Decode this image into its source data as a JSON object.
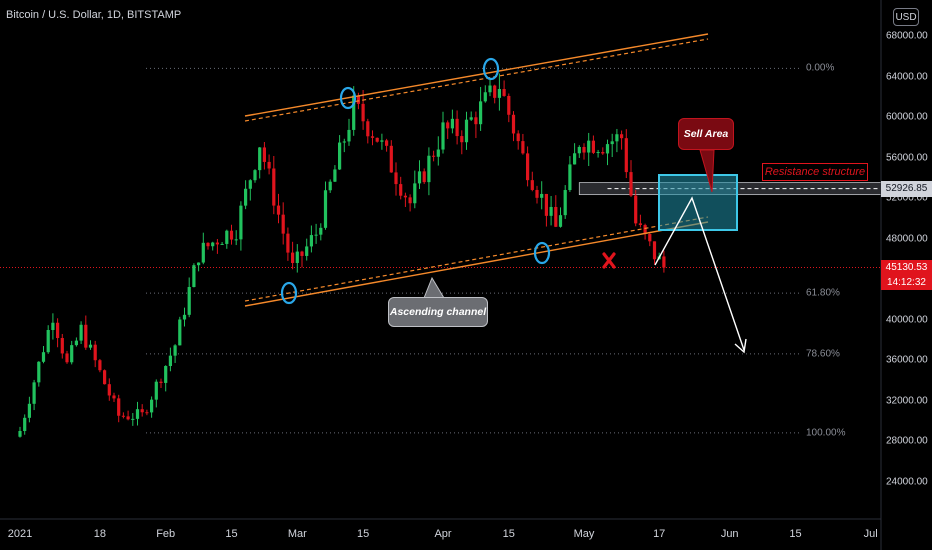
{
  "header": {
    "title": "Bitcoin / U.S. Dollar, 1D, BITSTAMP",
    "currency_button": "USD"
  },
  "y_axis_labels": [
    "68000.00",
    "64000.00",
    "60000.00",
    "56000.00",
    "52000.00",
    "48000.00",
    "44000.00",
    "40000.00",
    "36000.00",
    "32000.00",
    "28000.00",
    "24000.00"
  ],
  "x_axis_labels": [
    "2021",
    "18",
    "Feb",
    "15",
    "Mar",
    "15",
    "Apr",
    "15",
    "May",
    "17",
    "Jun",
    "15",
    "Jul"
  ],
  "fib_levels": [
    "0.00%",
    "61.80%",
    "78.60%",
    "100.00%"
  ],
  "annotations": {
    "resistance_label": "Resistance structure",
    "sell_label": "Sell Area",
    "channel_label": "Ascending channel"
  },
  "price_boxes": {
    "resistance_price": "52926.85",
    "last_price": "45130.53",
    "countdown": "14:12:32"
  },
  "colors": {
    "background": "#000000",
    "bull": "#21c25e",
    "bear": "#e0141d",
    "channel": "#f5892a",
    "sell_zone": "#1f8fa8",
    "resistance": "#e0141d",
    "markers": "#2aa7e8"
  },
  "chart_data": {
    "type": "candlestick",
    "title": "Bitcoin / U.S. Dollar, 1D, BITSTAMP",
    "ylim": [
      22000,
      70000
    ],
    "x_range": [
      "2021-01-01",
      "2021-07-10"
    ],
    "xlabel": "",
    "ylabel": "",
    "grid": false,
    "key_prices": {
      "last_price": 45130.53,
      "resistance_structure": 52926.85,
      "fib_0": 64800,
      "fib_61_8": 42600,
      "fib_78_6": 36600,
      "fib_100": 28800
    },
    "waypoints": [
      {
        "date": "2021-01-01",
        "close": 29000
      },
      {
        "date": "2021-01-08",
        "close": 40500
      },
      {
        "date": "2021-01-11",
        "close": 35500
      },
      {
        "date": "2021-01-14",
        "close": 39000
      },
      {
        "date": "2021-01-22",
        "close": 30500
      },
      {
        "date": "2021-01-27",
        "close": 30500
      },
      {
        "date": "2021-02-03",
        "close": 37500
      },
      {
        "date": "2021-02-08",
        "close": 46500
      },
      {
        "date": "2021-02-12",
        "close": 48000
      },
      {
        "date": "2021-02-16",
        "close": 49000
      },
      {
        "date": "2021-02-21",
        "close": 57500
      },
      {
        "date": "2021-02-28",
        "close": 45000
      },
      {
        "date": "2021-03-05",
        "close": 48500
      },
      {
        "date": "2021-03-13",
        "close": 61000
      },
      {
        "date": "2021-03-18",
        "close": 58000
      },
      {
        "date": "2021-03-25",
        "close": 51500
      },
      {
        "date": "2021-04-01",
        "close": 58700
      },
      {
        "date": "2021-04-05",
        "close": 58500
      },
      {
        "date": "2021-04-13",
        "close": 63200
      },
      {
        "date": "2021-04-18",
        "close": 56000
      },
      {
        "date": "2021-04-25",
        "close": 49000
      },
      {
        "date": "2021-04-30",
        "close": 57700
      },
      {
        "date": "2021-05-05",
        "close": 57400
      },
      {
        "date": "2021-05-09",
        "close": 58000
      },
      {
        "date": "2021-05-12",
        "close": 49500
      },
      {
        "date": "2021-05-16",
        "close": 46400
      },
      {
        "date": "2021-05-18",
        "close": 45130.53
      }
    ]
  }
}
